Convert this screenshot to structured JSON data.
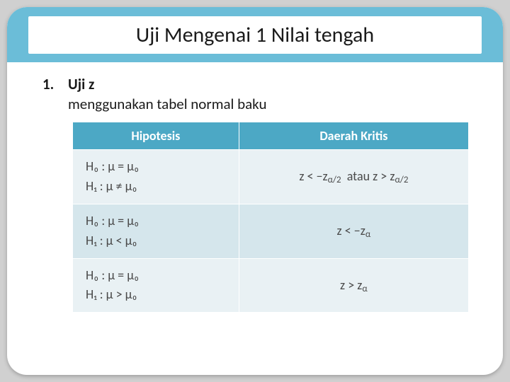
{
  "title": "Uji Mengenai 1 Nilai tengah",
  "list": {
    "number": "1.",
    "heading": "Uji z",
    "sub": "menggunakan tabel normal baku"
  },
  "table": {
    "headers": [
      "Hipotesis",
      "Daerah Kritis"
    ],
    "col_widths": [
      "42%",
      "58%"
    ],
    "header_bg": "#4ca8c5",
    "header_fg": "#ffffff",
    "row_bg_a": "#e9f1f4",
    "row_bg_b": "#d5e6ec",
    "text_color": "#4a4a4a",
    "rows": [
      {
        "h0": "H₀ : μ = μ₀",
        "h1": "H₁ : μ ≠ μ₀",
        "crit_html": "z < −z<sub>α/2</sub>&nbsp;&nbsp;atau&nbsp;z > z<sub>α/2</sub>"
      },
      {
        "h0": "H₀ : μ = μ₀",
        "h1": "H₁ : μ < μ₀",
        "crit_html": "z < −z<sub>α</sub>"
      },
      {
        "h0": "H₀ : μ = μ₀",
        "h1": "H₁ : μ > μ₀",
        "crit_html": "z > z<sub>α</sub>"
      }
    ]
  },
  "colors": {
    "title_bar_bg": "#6bbdd8",
    "slide_bg": "#ffffff",
    "page_bg": "#d0d0d0",
    "text": "#1a1a1a"
  },
  "fonts": {
    "title_size_pt": 30,
    "body_size_pt": 21,
    "table_size_pt": 18
  }
}
